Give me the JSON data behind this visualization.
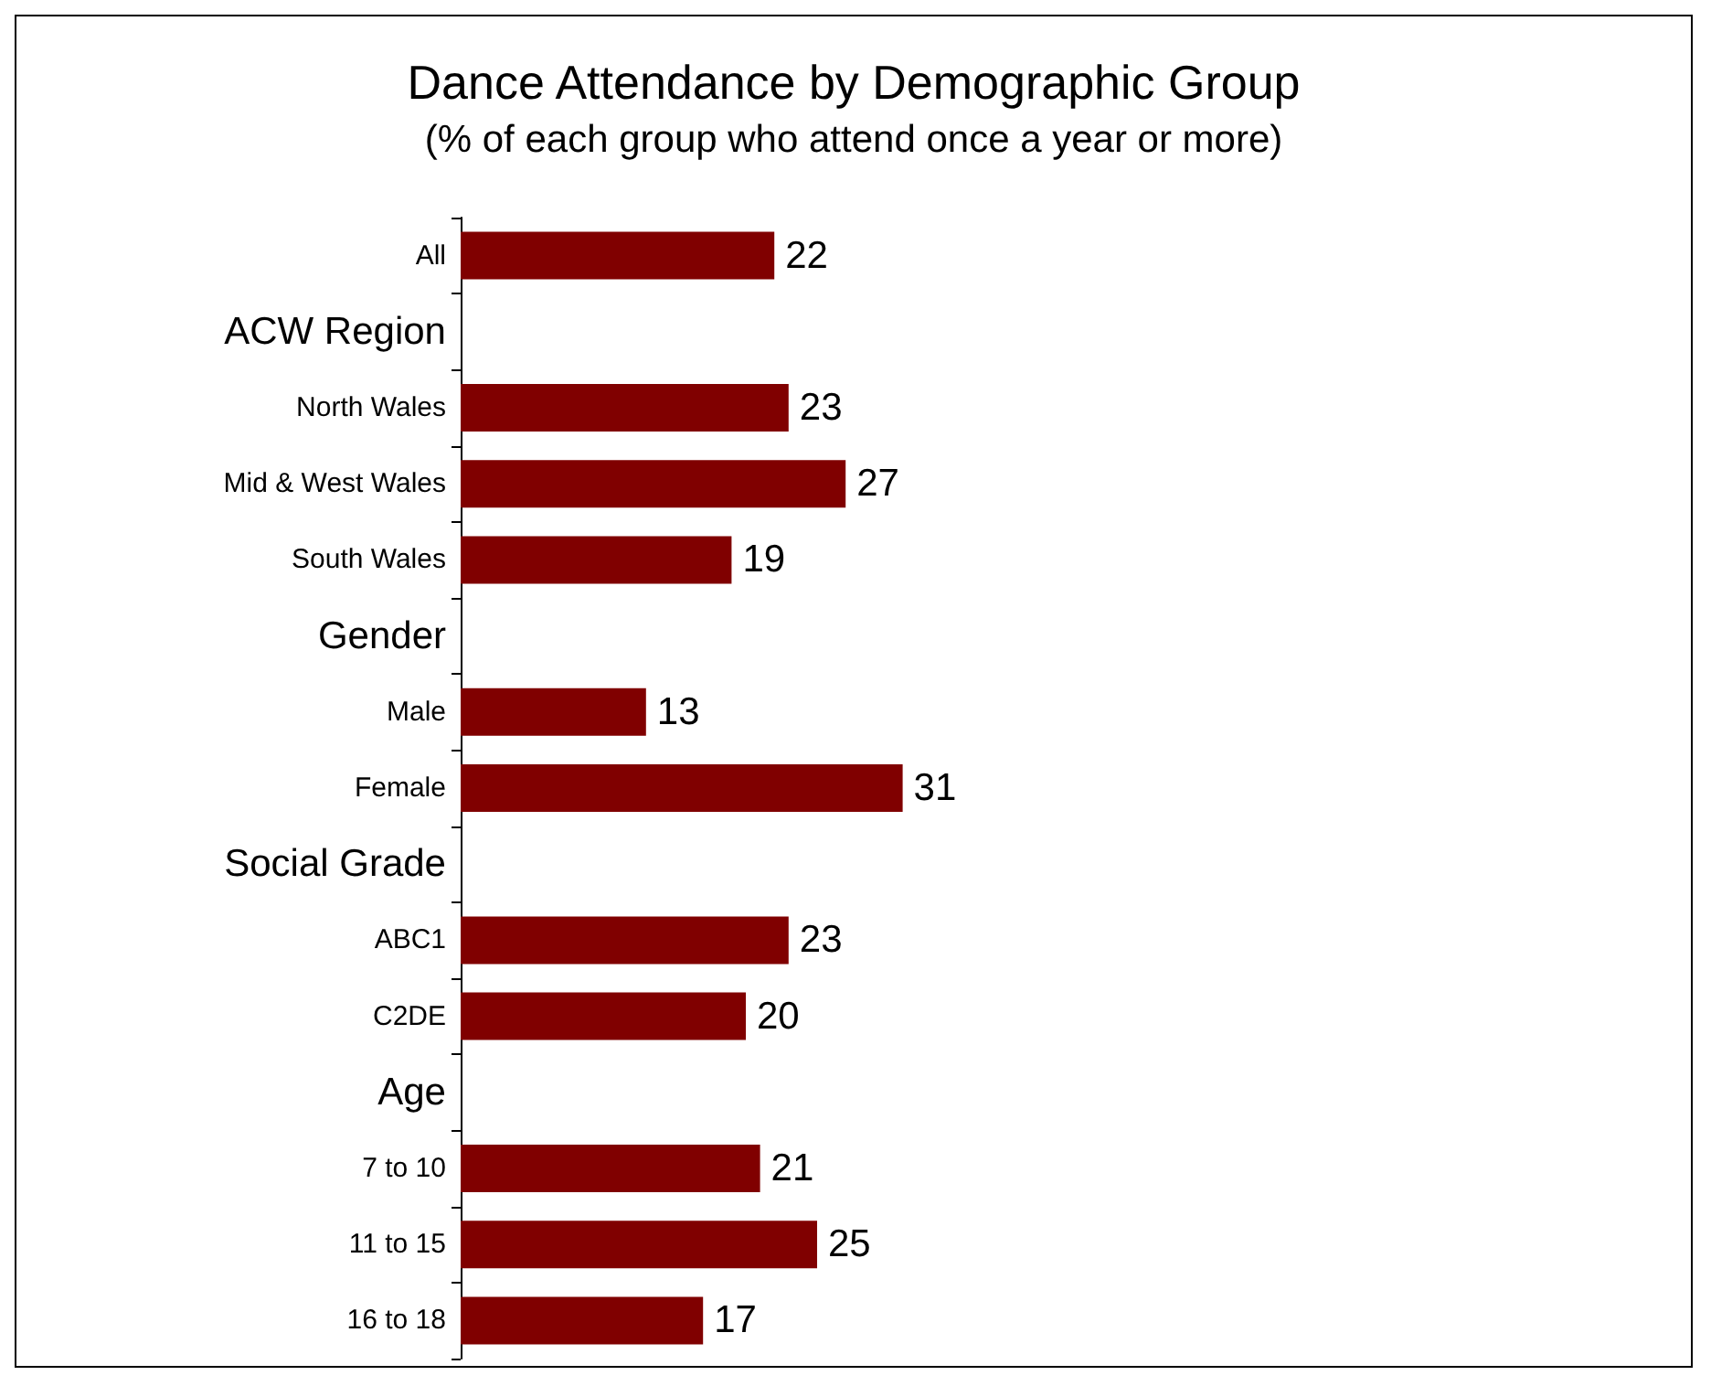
{
  "chart_data": {
    "type": "bar",
    "orientation": "horizontal",
    "title": "Dance Attendance by Demographic Group",
    "subtitle": "(% of each group who attend once a year or more)",
    "categories": [
      "All",
      "ACW Region",
      "North Wales",
      "Mid & West Wales",
      "South Wales",
      "Gender",
      "Male",
      "Female",
      "Social Grade",
      "ABC1",
      "C2DE",
      "Age",
      "7 to 10",
      "11 to 15",
      "16 to 18"
    ],
    "values": [
      22,
      null,
      23,
      27,
      19,
      null,
      13,
      31,
      null,
      23,
      20,
      null,
      21,
      25,
      17
    ],
    "color": "#800000",
    "data_labels": true
  }
}
